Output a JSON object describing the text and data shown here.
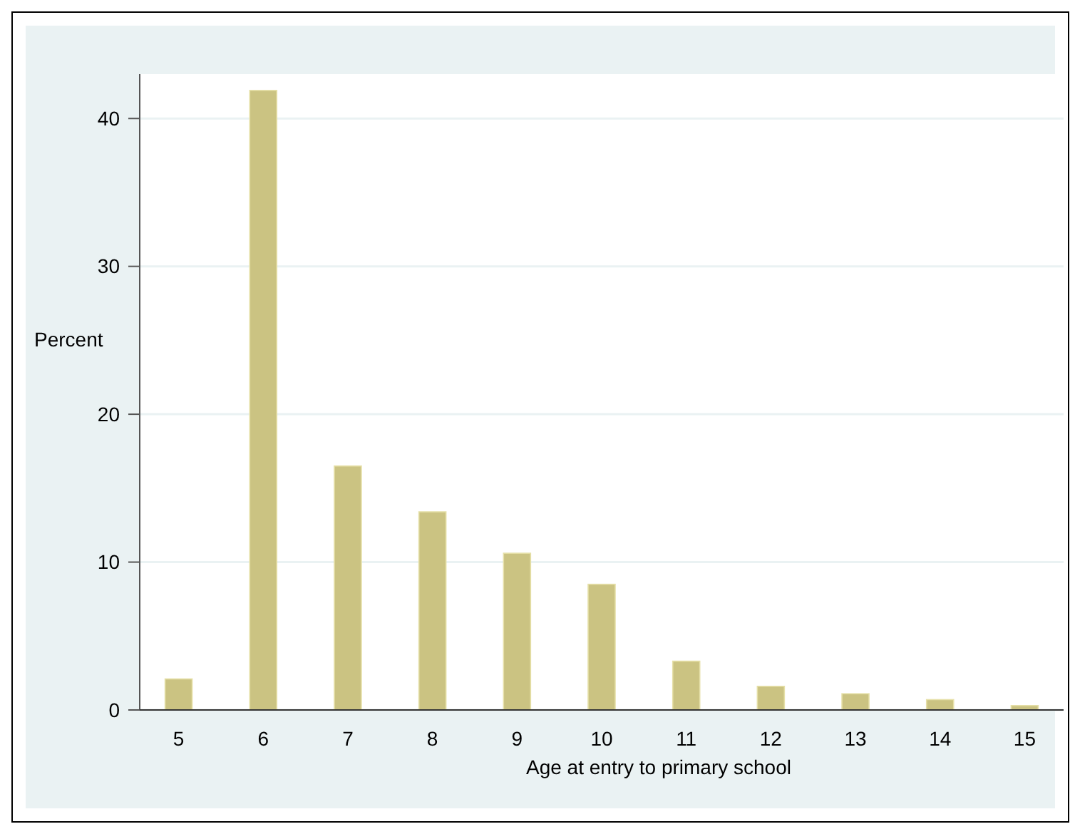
{
  "chart_data": {
    "type": "bar",
    "xlabel": "Age at entry to primary school",
    "ylabel": "Percent",
    "categories": [
      "5",
      "6",
      "7",
      "8",
      "9",
      "10",
      "11",
      "12",
      "13",
      "14",
      "15"
    ],
    "values": [
      2.1,
      41.9,
      16.5,
      13.4,
      10.6,
      8.5,
      3.3,
      1.6,
      1.1,
      0.7,
      0.3
    ],
    "color": "#cbc382",
    "ylim": [
      0,
      43
    ],
    "yticks": [
      0,
      10,
      20,
      30,
      40
    ],
    "grid": "y"
  }
}
